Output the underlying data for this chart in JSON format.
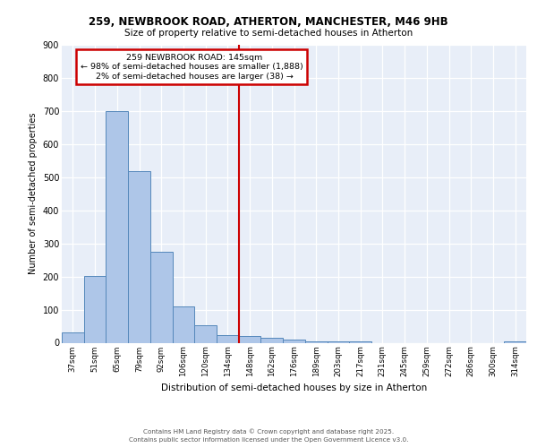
{
  "title1": "259, NEWBROOK ROAD, ATHERTON, MANCHESTER, M46 9HB",
  "title2": "Size of property relative to semi-detached houses in Atherton",
  "xlabel": "Distribution of semi-detached houses by size in Atherton",
  "ylabel": "Number of semi-detached properties",
  "categories": [
    "37sqm",
    "51sqm",
    "65sqm",
    "79sqm",
    "92sqm",
    "106sqm",
    "120sqm",
    "134sqm",
    "148sqm",
    "162sqm",
    "176sqm",
    "189sqm",
    "203sqm",
    "217sqm",
    "231sqm",
    "245sqm",
    "259sqm",
    "272sqm",
    "286sqm",
    "300sqm",
    "314sqm"
  ],
  "values": [
    30,
    203,
    700,
    517,
    275,
    110,
    52,
    22,
    20,
    15,
    10,
    5,
    5,
    3,
    0,
    0,
    0,
    0,
    0,
    0,
    3
  ],
  "bar_color": "#aec6e8",
  "bar_edge_color": "#5588bb",
  "vline_x_index": 8.0,
  "vline_color": "#cc0000",
  "annotation_box_color": "#cc0000",
  "property_label": "259 NEWBROOK ROAD: 145sqm",
  "pct_smaller": 98,
  "count_smaller": 1888,
  "pct_larger": 2,
  "count_larger": 38,
  "ylim": [
    0,
    900
  ],
  "yticks": [
    0,
    100,
    200,
    300,
    400,
    500,
    600,
    700,
    800,
    900
  ],
  "bg_color": "#e8eef8",
  "footer1": "Contains HM Land Registry data © Crown copyright and database right 2025.",
  "footer2": "Contains public sector information licensed under the Open Government Licence v3.0."
}
